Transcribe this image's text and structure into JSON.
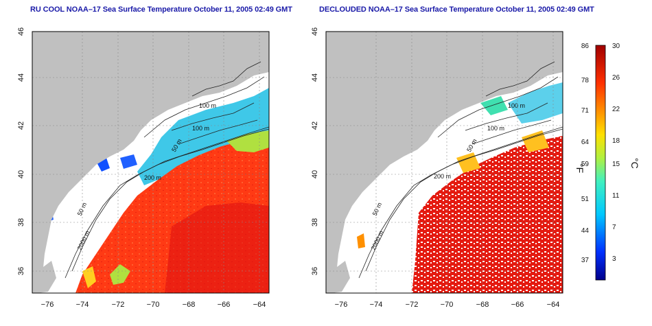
{
  "titles": {
    "left": "RU COOL NOAA–17 Sea Surface Temperature October 11, 2005 02:49 GMT",
    "right": "DECLOUDED NOAA–17 Sea Surface Temperature October 11, 2005 02:49 GMT"
  },
  "axes": {
    "x_ticks": [
      "−76",
      "−74",
      "−72",
      "−70",
      "−68",
      "−66",
      "−64"
    ],
    "y_ticks": [
      "46",
      "44",
      "42",
      "40",
      "38",
      "36"
    ]
  },
  "contour_labels": [
    "100 m",
    "100 m",
    "50 m",
    "200 m",
    "50 m",
    "2000 m"
  ],
  "colorbar": {
    "fahrenheit_ticks": [
      "86",
      "78",
      "71",
      "64",
      "59",
      "51",
      "44",
      "37"
    ],
    "celsius_ticks": [
      "30",
      "26",
      "22",
      "18",
      "15",
      "11",
      "7",
      "3"
    ],
    "fahrenheit_label": "°F",
    "celsius_label": "°C"
  },
  "colors": {
    "land": "#c0c0c0",
    "cloud_mask": "#ffffff",
    "warm_water": "#ff3a14",
    "hot_water": "#e01010",
    "cool_water": "#3fc8e8",
    "mid_water": "#9ee060",
    "title_text": "#1a1aa8"
  }
}
